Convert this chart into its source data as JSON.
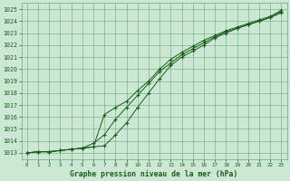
{
  "title": "Graphe pression niveau de la mer (hPa)",
  "xlim": [
    -0.5,
    23.5
  ],
  "ylim": [
    1012.5,
    1025.5
  ],
  "xticks": [
    0,
    1,
    2,
    3,
    4,
    5,
    6,
    7,
    8,
    9,
    10,
    11,
    12,
    13,
    14,
    15,
    16,
    17,
    18,
    19,
    20,
    21,
    22,
    23
  ],
  "yticks": [
    1013,
    1014,
    1015,
    1016,
    1017,
    1018,
    1019,
    1020,
    1021,
    1022,
    1023,
    1024,
    1025
  ],
  "background_color": "#cce8d4",
  "grid_color": "#66aa77",
  "line_color": "#1a5c1a",
  "line1": [
    1013.0,
    1013.1,
    1013.1,
    1013.2,
    1013.3,
    1013.4,
    1013.5,
    1013.6,
    1014.5,
    1015.5,
    1016.8,
    1018.0,
    1019.2,
    1020.3,
    1021.0,
    1021.5,
    1022.0,
    1022.6,
    1023.0,
    1023.4,
    1023.7,
    1024.0,
    1024.3,
    1024.7
  ],
  "line2": [
    1013.0,
    1013.1,
    1013.1,
    1013.2,
    1013.3,
    1013.4,
    1013.8,
    1014.5,
    1015.8,
    1016.8,
    1017.8,
    1018.8,
    1019.8,
    1020.5,
    1021.2,
    1021.7,
    1022.2,
    1022.7,
    1023.1,
    1023.4,
    1023.7,
    1024.0,
    1024.3,
    1024.8
  ],
  "line3": [
    1013.0,
    1013.1,
    1013.1,
    1013.2,
    1013.3,
    1013.4,
    1013.5,
    1016.2,
    1016.8,
    1017.3,
    1018.2,
    1019.0,
    1020.0,
    1020.8,
    1021.4,
    1021.9,
    1022.4,
    1022.8,
    1023.2,
    1023.5,
    1023.8,
    1024.1,
    1024.4,
    1024.9
  ]
}
